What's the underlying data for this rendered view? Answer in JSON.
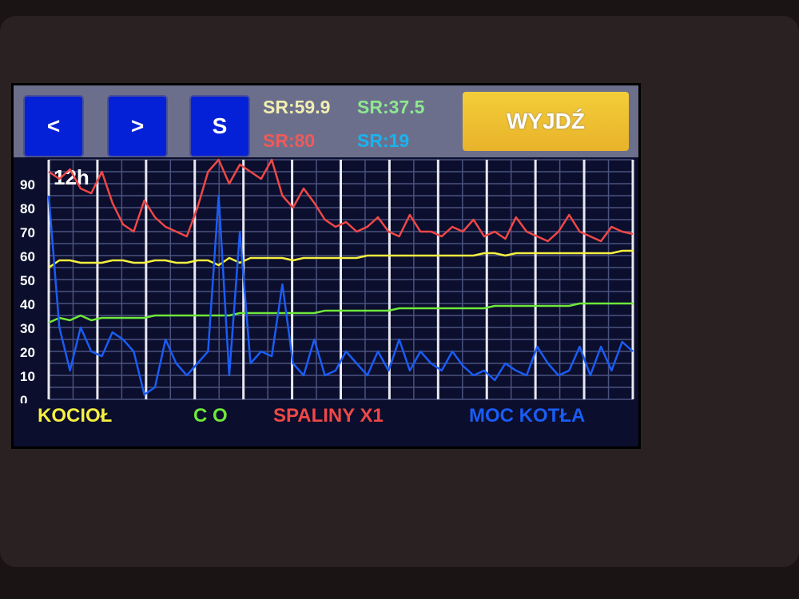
{
  "toolbar": {
    "prev_label": "<",
    "next_label": ">",
    "s_label": "S",
    "exit_label": "WYJDŹ",
    "averages": [
      {
        "text": "SR:59.9",
        "color": "#f2efb0"
      },
      {
        "text": "SR:37.5",
        "color": "#8fe88f"
      },
      {
        "text": "SR:80",
        "color": "#ef5a5a"
      },
      {
        "text": "SR:19",
        "color": "#19b4f0"
      }
    ]
  },
  "chart_data": {
    "type": "line",
    "period_label": "12h",
    "ylim": [
      0,
      100
    ],
    "yticks": [
      "0",
      "10",
      "20",
      "30",
      "40",
      "50",
      "60",
      "70",
      "80",
      "90"
    ],
    "grid": true,
    "legend_placement": "bottom",
    "series": [
      {
        "name": "KOCIOŁ",
        "color": "#f5f040",
        "values": [
          55,
          58,
          58,
          57,
          57,
          57,
          58,
          58,
          57,
          57,
          58,
          58,
          57,
          57,
          58,
          58,
          56,
          59,
          57,
          59,
          59,
          59,
          59,
          58,
          59,
          59,
          59,
          59,
          59,
          59,
          60,
          60,
          60,
          60,
          60,
          60,
          60,
          60,
          60,
          60,
          60,
          61,
          61,
          60,
          61,
          61,
          61,
          61,
          61,
          61,
          61,
          61,
          61,
          61,
          62,
          62
        ]
      },
      {
        "name": "C O",
        "color": "#6ee83a",
        "values": [
          32,
          34,
          33,
          35,
          33,
          34,
          34,
          34,
          34,
          34,
          35,
          35,
          35,
          35,
          35,
          35,
          35,
          35,
          36,
          36,
          36,
          36,
          36,
          36,
          36,
          36,
          37,
          37,
          37,
          37,
          37,
          37,
          37,
          38,
          38,
          38,
          38,
          38,
          38,
          38,
          38,
          38,
          39,
          39,
          39,
          39,
          39,
          39,
          39,
          39,
          40,
          40,
          40,
          40,
          40,
          40
        ]
      },
      {
        "name": "SPALINY X1",
        "color": "#ef4848",
        "values": [
          95,
          92,
          96,
          88,
          86,
          95,
          82,
          73,
          70,
          83,
          76,
          72,
          70,
          68,
          80,
          95,
          100,
          90,
          98,
          95,
          92,
          100,
          85,
          80,
          88,
          82,
          75,
          72,
          74,
          70,
          72,
          76,
          70,
          68,
          77,
          70,
          70,
          68,
          72,
          70,
          75,
          68,
          70,
          67,
          76,
          70,
          68,
          66,
          70,
          77,
          70,
          68,
          66,
          72,
          70,
          69
        ]
      },
      {
        "name": "MOC KOTŁA",
        "color": "#1a5cf5",
        "values": [
          85,
          30,
          12,
          30,
          20,
          18,
          28,
          25,
          20,
          2,
          5,
          25,
          15,
          10,
          15,
          20,
          85,
          10,
          70,
          15,
          20,
          18,
          48,
          15,
          10,
          25,
          10,
          12,
          20,
          15,
          10,
          20,
          12,
          25,
          12,
          20,
          15,
          12,
          20,
          14,
          10,
          12,
          8,
          15,
          12,
          10,
          22,
          15,
          10,
          12,
          22,
          10,
          22,
          12,
          24,
          20
        ]
      }
    ]
  }
}
